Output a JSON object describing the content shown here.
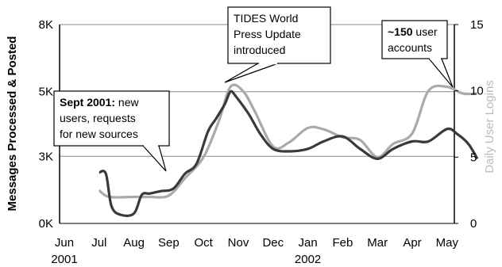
{
  "chart_data": {
    "type": "line",
    "title": "",
    "x_months": [
      "2001-06",
      "2001-07",
      "2001-08",
      "2001-09",
      "2001-10",
      "2001-11",
      "2001-12",
      "2002-01",
      "2002-02",
      "2002-03",
      "2002-04",
      "2002-05"
    ],
    "x_tick_labels": [
      "Jun",
      "Jul",
      "Aug",
      "Sep",
      "Oct",
      "Nov",
      "Dec",
      "Jan",
      "Feb",
      "Mar",
      "Apr",
      "May"
    ],
    "year_labels": [
      {
        "month": "2001-06",
        "text": "2001"
      },
      {
        "month": "2002-01",
        "text": "2002"
      }
    ],
    "y_left": {
      "label": "Messages Processed & Posted",
      "range": [
        0,
        8000
      ],
      "ticks": [
        0,
        2700,
        5300,
        8000
      ],
      "tick_labels": [
        "0K",
        "3K",
        "5K",
        "8K"
      ]
    },
    "y_right": {
      "label": "Daily User Logins",
      "range": [
        0,
        15
      ],
      "ticks": [
        0,
        5,
        10,
        15
      ],
      "tick_labels": [
        "0",
        "5",
        "10",
        "15"
      ]
    },
    "grid": true,
    "series": [
      {
        "axis": "left",
        "color": "#3a3a3a",
        "x": [
          "2001-07-01",
          "2001-07-07",
          "2001-07-12",
          "2001-07-20",
          "2001-08-01",
          "2001-08-08",
          "2001-08-15",
          "2001-08-25",
          "2001-09-05",
          "2001-09-15",
          "2001-09-25",
          "2001-10-05",
          "2001-10-12",
          "2001-10-20",
          "2001-10-25",
          "2001-10-30",
          "2001-11-10",
          "2001-11-20",
          "2001-12-01",
          "2001-12-15",
          "2002-01-01",
          "2002-01-15",
          "2002-02-01",
          "2002-02-15",
          "2002-03-01",
          "2002-03-15",
          "2002-04-01",
          "2002-04-15",
          "2002-05-01",
          "2002-05-10",
          "2002-05-20",
          "2002-05-28"
        ],
        "y": [
          2050,
          2000,
          700,
          350,
          400,
          1150,
          1200,
          1300,
          1400,
          2000,
          2400,
          3700,
          4200,
          4800,
          5300,
          5100,
          4400,
          3600,
          3000,
          2900,
          3000,
          3300,
          3500,
          3000,
          2600,
          3000,
          3300,
          3300,
          3800,
          3600,
          3200,
          2600
        ]
      },
      {
        "axis": "right",
        "color": "#aaaaaa",
        "x": [
          "2001-07-01",
          "2001-07-10",
          "2001-08-01",
          "2001-08-15",
          "2001-09-01",
          "2001-09-15",
          "2001-10-01",
          "2001-10-15",
          "2001-10-25",
          "2001-11-05",
          "2001-11-15",
          "2001-12-01",
          "2001-12-15",
          "2002-01-01",
          "2002-01-15",
          "2002-02-01",
          "2002-02-15",
          "2002-03-01",
          "2002-03-15",
          "2002-04-01",
          "2002-04-15",
          "2002-05-01",
          "2002-05-15",
          "2002-05-28"
        ],
        "y": [
          2.5,
          2.0,
          2.0,
          2.0,
          2.1,
          3.4,
          5.0,
          7.8,
          10.3,
          10.0,
          8.5,
          5.8,
          6.1,
          7.2,
          7.1,
          6.5,
          6.3,
          5.0,
          6.0,
          6.8,
          10.0,
          10.3,
          9.8,
          9.8
        ]
      }
    ],
    "annotations": [
      {
        "id": "tides",
        "lines": [
          [
            {
              "t": "TIDES World",
              "b": false
            }
          ],
          [
            {
              "t": "Press Update",
              "b": false
            }
          ],
          [
            {
              "t": "introduced",
              "b": false
            }
          ]
        ]
      },
      {
        "id": "sept",
        "lines": [
          [
            {
              "t": "Sept 2001:",
              "b": true
            },
            {
              "t": " new",
              "b": false
            }
          ],
          [
            {
              "t": "users, requests",
              "b": false
            }
          ],
          [
            {
              "t": "for new sources",
              "b": false
            }
          ]
        ]
      },
      {
        "id": "accounts",
        "lines": [
          [
            {
              "t": "~150",
              "b": true
            },
            {
              "t": " user",
              "b": false
            }
          ],
          [
            {
              "t": "accounts",
              "b": false
            }
          ]
        ]
      }
    ]
  }
}
